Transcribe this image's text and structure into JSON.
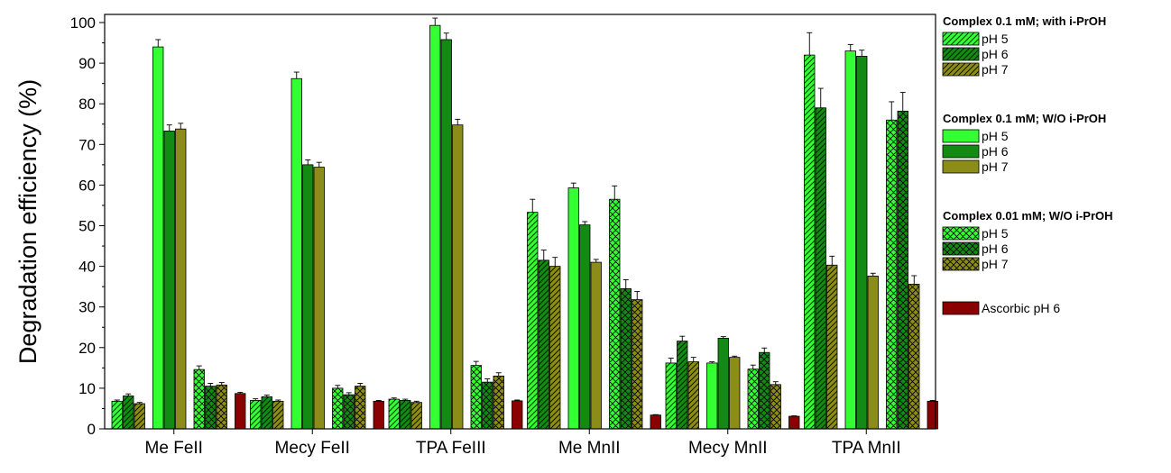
{
  "chart_data": {
    "type": "bar",
    "title": "",
    "xlabel": "",
    "ylabel": "Degradation efficiency (%)",
    "ylim": [
      0,
      102
    ],
    "yticks": [
      0,
      10,
      20,
      30,
      40,
      50,
      60,
      70,
      80,
      90,
      100
    ],
    "categories": [
      "Me FeII",
      "Mecy FeII",
      "TPA FeIII",
      "Me MnII",
      "Mecy MnII",
      "TPA MnII"
    ],
    "legend_position": "right",
    "colors": {
      "ph5": "#33ff33",
      "ph6": "#138a13",
      "ph7": "#8c8c18",
      "ascorbic": "#8b0000"
    },
    "groups": [
      {
        "title": "Complex 0.1 mM; with i-PrOH",
        "pattern": "diagonal",
        "series": [
          {
            "name": "pH 5",
            "values": [
              6.8,
              7.0,
              7.3,
              53.3,
              16.2,
              92.0
            ],
            "errors": [
              0.3,
              0.4,
              0.3,
              3.2,
              1.2,
              5.5
            ]
          },
          {
            "name": "pH 6",
            "values": [
              8.1,
              7.9,
              7.0,
              41.5,
              21.6,
              79.0
            ],
            "errors": [
              0.5,
              0.4,
              0.3,
              2.5,
              1.2,
              4.8
            ]
          },
          {
            "name": "pH 7",
            "values": [
              6.2,
              6.8,
              6.5,
              40.0,
              16.5,
              40.3
            ],
            "errors": [
              0.3,
              0.3,
              0.3,
              2.2,
              1.1,
              2.2
            ]
          }
        ]
      },
      {
        "title": "Complex 0.1 mM; W/O i-PrOH",
        "pattern": "solid",
        "series": [
          {
            "name": "pH 5",
            "values": [
              94.0,
              86.2,
              99.3,
              59.3,
              16.2,
              93.0
            ],
            "errors": [
              1.8,
              1.6,
              1.8,
              1.2,
              0.3,
              1.6
            ]
          },
          {
            "name": "pH 6",
            "values": [
              73.3,
              65.0,
              95.8,
              50.2,
              22.3,
              91.7
            ],
            "errors": [
              1.5,
              1.2,
              1.6,
              0.8,
              0.4,
              1.5
            ]
          },
          {
            "name": "pH 7",
            "values": [
              73.8,
              64.4,
              74.8,
              41.0,
              17.6,
              37.6
            ],
            "errors": [
              1.4,
              1.2,
              1.4,
              0.7,
              0.3,
              0.7
            ]
          }
        ]
      },
      {
        "title": "Complex 0.01 mM; W/O i-PrOH",
        "pattern": "cross",
        "series": [
          {
            "name": "pH 5",
            "values": [
              14.6,
              10.0,
              15.6,
              56.5,
              14.7,
              76.0
            ],
            "errors": [
              0.9,
              0.7,
              1.0,
              3.3,
              1.0,
              4.5
            ]
          },
          {
            "name": "pH 6",
            "values": [
              10.5,
              8.4,
              11.5,
              34.5,
              18.8,
              78.2
            ],
            "errors": [
              0.7,
              0.5,
              0.8,
              2.2,
              1.1,
              4.6
            ]
          },
          {
            "name": "pH 7",
            "values": [
              10.8,
              10.5,
              13.0,
              31.8,
              10.9,
              35.6
            ],
            "errors": [
              0.6,
              0.7,
              0.8,
              2.0,
              0.7,
              2.1
            ]
          }
        ]
      }
    ],
    "ascorbic": {
      "name": "Ascorbic pH 6",
      "values": [
        8.7,
        6.8,
        6.9,
        3.4,
        3.1,
        6.8
      ],
      "errors": [
        0.3,
        0.2,
        0.2,
        0.1,
        0.1,
        0.2
      ]
    }
  }
}
